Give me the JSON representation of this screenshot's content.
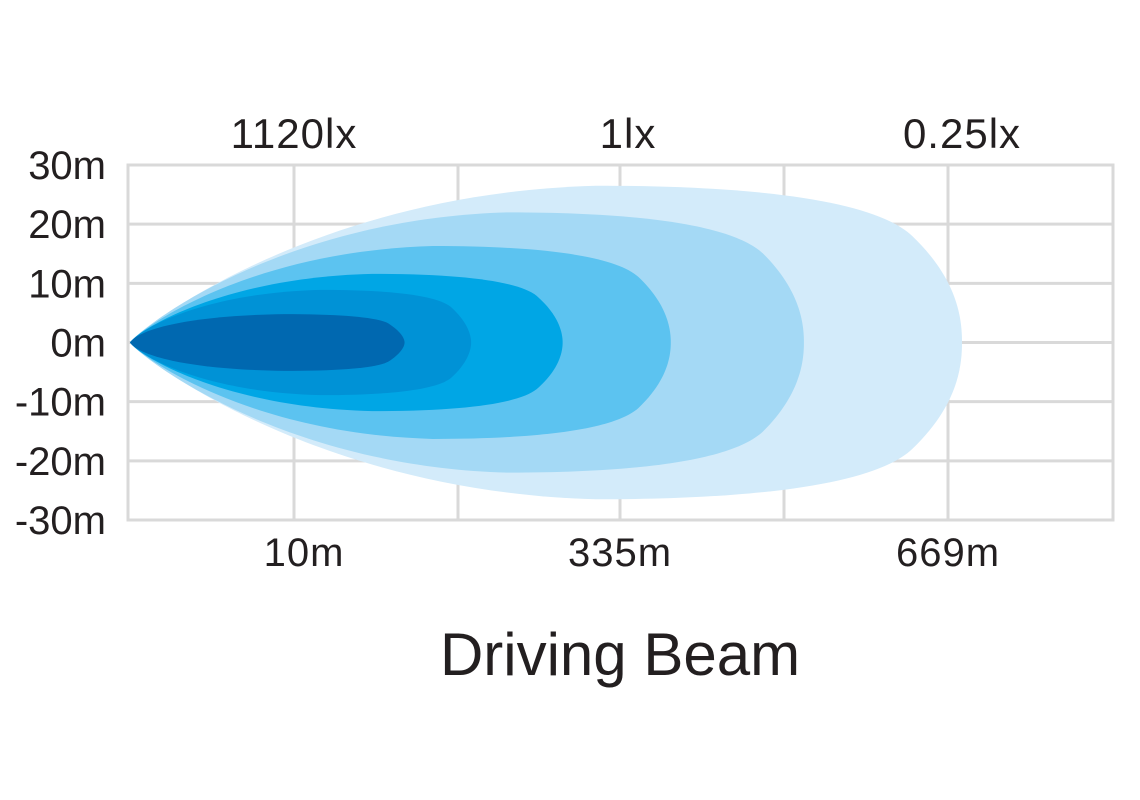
{
  "chart_data": {
    "type": "area",
    "title": "Driving Beam",
    "y_tick_labels": [
      "30m",
      "20m",
      "10m",
      "0m",
      "-10m",
      "-20m",
      "-30m"
    ],
    "top_labels": [
      "1120lx",
      "1lx",
      "0.25lx"
    ],
    "bottom_labels": [
      "10m",
      "335m",
      "669m"
    ],
    "ylim": [
      -30,
      30
    ],
    "grid": true,
    "series": [
      {
        "color": "#d3ebfa",
        "extent": 1.0,
        "half_width": 26.5
      },
      {
        "color": "#a4d9f5",
        "extent": 0.81,
        "half_width": 22.0
      },
      {
        "color": "#5cc3f0",
        "extent": 0.65,
        "half_width": 16.3
      },
      {
        "color": "#00a6e5",
        "extent": 0.52,
        "half_width": 11.6
      },
      {
        "color": "#0092d6",
        "extent": 0.41,
        "half_width": 8.9
      },
      {
        "color": "#0068b0",
        "extent": 0.33,
        "half_width": 4.8
      }
    ]
  }
}
